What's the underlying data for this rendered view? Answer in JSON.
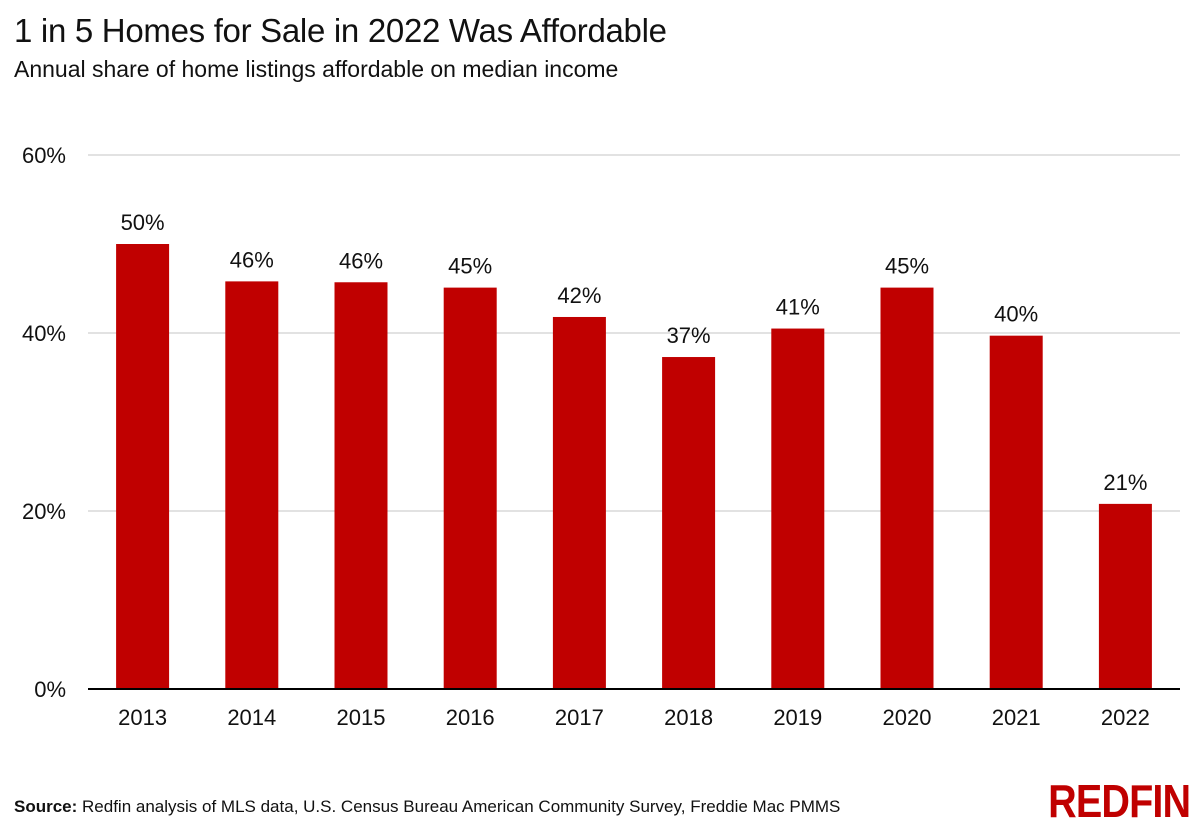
{
  "title": "1 in 5 Homes for Sale in 2022 Was Affordable",
  "subtitle": "Annual share of home listings affordable on median income",
  "source": {
    "label": "Source:",
    "text": " Redfin analysis of MLS data, U.S. Census Bureau American Community Survey, Freddie Mac PMMS"
  },
  "logo": "REDFIN",
  "colors": {
    "bar": "#c00000",
    "grid": "#d9d9d9",
    "axis": "#000000",
    "brand": "#c00000"
  },
  "chart_data": {
    "type": "bar",
    "categories": [
      "2013",
      "2014",
      "2015",
      "2016",
      "2017",
      "2018",
      "2019",
      "2020",
      "2021",
      "2022"
    ],
    "values": [
      50.0,
      45.8,
      45.7,
      45.1,
      41.8,
      37.3,
      40.5,
      45.1,
      39.7,
      20.8
    ],
    "data_labels": [
      "50%",
      "46%",
      "46%",
      "45%",
      "42%",
      "37%",
      "41%",
      "45%",
      "40%",
      "21%"
    ],
    "ylim": [
      0,
      60
    ],
    "yticks": [
      0,
      20,
      40,
      60
    ],
    "ytick_labels": [
      "0%",
      "20%",
      "40%",
      "60%"
    ],
    "grid": true,
    "legend": false
  }
}
